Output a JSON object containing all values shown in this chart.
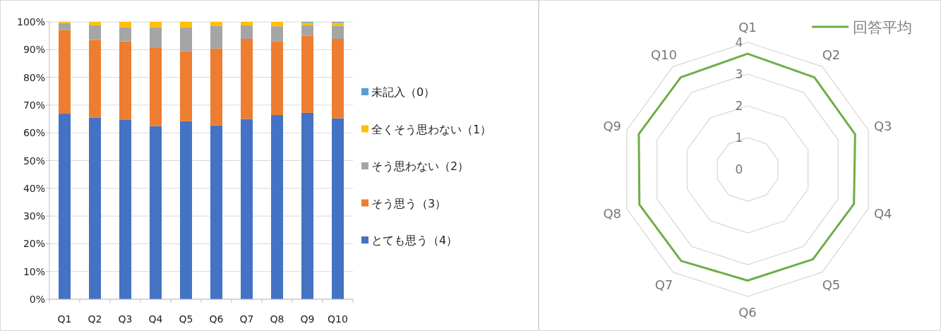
{
  "chart_data": [
    {
      "type": "bar",
      "stacked": true,
      "categories": [
        "Q1",
        "Q2",
        "Q3",
        "Q4",
        "Q5",
        "Q6",
        "Q7",
        "Q8",
        "Q9",
        "Q10"
      ],
      "series": [
        {
          "name": "とても思う（4）",
          "color": "#4472c4",
          "values": [
            66.9,
            65.5,
            64.8,
            62.4,
            64.2,
            62.7,
            65.0,
            66.4,
            67.2,
            65.2
          ]
        },
        {
          "name": "そう思う（3）",
          "color": "#ed7d31",
          "values": [
            30.1,
            28.0,
            28.2,
            28.4,
            25.2,
            27.7,
            28.9,
            26.5,
            27.8,
            28.7
          ]
        },
        {
          "name": "そう思わない（2）",
          "color": "#a5a5a5",
          "values": [
            2.6,
            5.3,
            5.1,
            7.2,
            8.6,
            8.1,
            4.8,
            5.5,
            3.7,
            4.7
          ]
        },
        {
          "name": "全くそう思わない（1）",
          "color": "#ffc000",
          "values": [
            0.4,
            1.2,
            1.9,
            2.0,
            2.0,
            1.5,
            1.3,
            1.6,
            1.0,
            1.1
          ]
        },
        {
          "name": "未記入（0）",
          "color": "#5b9bd5",
          "values": [
            0,
            0,
            0,
            0,
            0,
            0,
            0,
            0,
            0.3,
            0.3
          ]
        }
      ],
      "ylim": [
        0,
        100
      ],
      "yticks": [
        {
          "value": 0,
          "label": "0%"
        },
        {
          "value": 10,
          "label": "10%"
        },
        {
          "value": 20,
          "label": "20%"
        },
        {
          "value": 30,
          "label": "30%"
        },
        {
          "value": 40,
          "label": "40%"
        },
        {
          "value": 50,
          "label": "50%"
        },
        {
          "value": 60,
          "label": "60%"
        },
        {
          "value": 70,
          "label": "70%"
        },
        {
          "value": 80,
          "label": "80%"
        },
        {
          "value": 90,
          "label": "90%"
        },
        {
          "value": 100,
          "label": "100%"
        }
      ],
      "grid": "y",
      "legend": "right"
    },
    {
      "type": "radar",
      "categories": [
        "Q1",
        "Q2",
        "Q3",
        "Q4",
        "Q5",
        "Q6",
        "Q7",
        "Q8",
        "Q9",
        "Q10"
      ],
      "series": [
        {
          "name": "回答平均",
          "color": "#70ad47",
          "values": [
            3.64,
            3.58,
            3.56,
            3.52,
            3.5,
            3.5,
            3.56,
            3.58,
            3.6,
            3.58
          ]
        }
      ],
      "ylim": [
        0,
        4
      ],
      "yticks": [
        0,
        1,
        2,
        3,
        4
      ],
      "grid": true,
      "legend": "top right"
    }
  ]
}
